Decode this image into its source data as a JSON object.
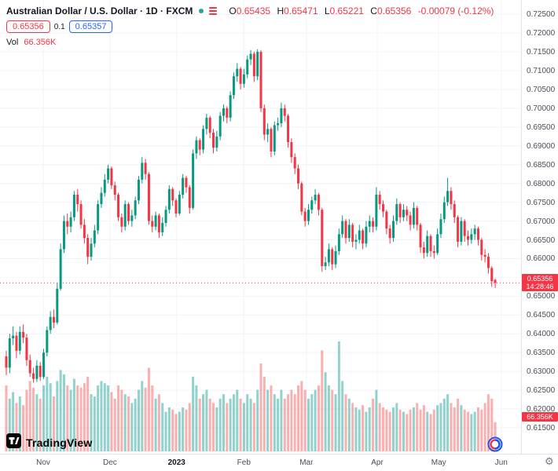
{
  "header": {
    "symbol_title": "Australian Dollar / U.S. Dollar · 1D · FXCM",
    "ohlc": {
      "o_label": "O",
      "o": "0.65435",
      "h_label": "H",
      "h": "0.65471",
      "l_label": "L",
      "l": "0.65221",
      "c_label": "C",
      "c": "0.65356",
      "change": "-0.00079 (-0.12%)"
    },
    "bid": "0.65356",
    "spread": "0.1",
    "ask": "0.65357",
    "vol_label": "Vol",
    "vol_value": "66.356K"
  },
  "price_tag": {
    "price": "0.65356",
    "countdown": "14:28:46"
  },
  "volume_tag": "66.356K",
  "watermark": {
    "logo_text": "TradingView"
  },
  "chart_data": {
    "type": "candlestick",
    "symbol": "AUD/USD",
    "title": "Australian Dollar / U.S. Dollar",
    "interval": "1D",
    "exchange": "FXCM",
    "last_price": 0.65356,
    "last_volume_k": 66.356,
    "price_range_top": 0.7288,
    "price_range_bottom": 0.6081,
    "colors": {
      "up": "#089981",
      "down": "#f23645",
      "vol_up": "rgba(38,166,154,0.5)",
      "vol_down": "rgba(239,83,80,0.45)",
      "price_line": "#f23645"
    },
    "y_ticks": [
      "0.72500",
      "0.72000",
      "0.71500",
      "0.71000",
      "0.70500",
      "0.70000",
      "0.69500",
      "0.69000",
      "0.68500",
      "0.68000",
      "0.67500",
      "0.67000",
      "0.66500",
      "0.66000",
      "0.65500",
      "0.65000",
      "0.64500",
      "0.64000",
      "0.63500",
      "0.63000",
      "0.62500",
      "0.62000",
      "0.61500"
    ],
    "x_ticks": [
      {
        "label": "Nov",
        "pos": 0.083
      },
      {
        "label": "Dec",
        "pos": 0.211
      },
      {
        "label": "2023",
        "pos": 0.339,
        "bold": true
      },
      {
        "label": "Feb",
        "pos": 0.468
      },
      {
        "label": "Mar",
        "pos": 0.588
      },
      {
        "label": "Apr",
        "pos": 0.724
      },
      {
        "label": "May",
        "pos": 0.842
      },
      {
        "label": "Jun",
        "pos": 0.962
      }
    ],
    "candles_format": [
      "open",
      "high",
      "low",
      "close",
      "volume_k"
    ],
    "candles": [
      [
        0.634,
        0.6355,
        0.629,
        0.631,
        150
      ],
      [
        0.631,
        0.64,
        0.6295,
        0.6388,
        120
      ],
      [
        0.6388,
        0.642,
        0.637,
        0.6395,
        135
      ],
      [
        0.6395,
        0.6405,
        0.6335,
        0.6355,
        110
      ],
      [
        0.6355,
        0.642,
        0.6345,
        0.6405,
        125
      ],
      [
        0.6405,
        0.6425,
        0.6375,
        0.639,
        105
      ],
      [
        0.639,
        0.64,
        0.6315,
        0.633,
        140
      ],
      [
        0.633,
        0.6345,
        0.6285,
        0.6295,
        160
      ],
      [
        0.6295,
        0.631,
        0.627,
        0.628,
        145
      ],
      [
        0.628,
        0.633,
        0.6272,
        0.6315,
        130
      ],
      [
        0.6315,
        0.6325,
        0.6275,
        0.6285,
        120
      ],
      [
        0.6285,
        0.636,
        0.628,
        0.635,
        150
      ],
      [
        0.635,
        0.642,
        0.634,
        0.641,
        170
      ],
      [
        0.641,
        0.646,
        0.64,
        0.6445,
        155
      ],
      [
        0.6445,
        0.6465,
        0.6415,
        0.643,
        125
      ],
      [
        0.643,
        0.6535,
        0.6425,
        0.652,
        160
      ],
      [
        0.652,
        0.664,
        0.6515,
        0.6625,
        185
      ],
      [
        0.6625,
        0.6715,
        0.6615,
        0.67,
        175
      ],
      [
        0.67,
        0.672,
        0.6665,
        0.6685,
        150
      ],
      [
        0.6685,
        0.6725,
        0.667,
        0.671,
        140
      ],
      [
        0.671,
        0.678,
        0.67,
        0.677,
        165
      ],
      [
        0.677,
        0.6785,
        0.6725,
        0.6745,
        150
      ],
      [
        0.6745,
        0.6755,
        0.668,
        0.669,
        145
      ],
      [
        0.669,
        0.6705,
        0.664,
        0.6655,
        155
      ],
      [
        0.6655,
        0.6665,
        0.6585,
        0.6605,
        170
      ],
      [
        0.6605,
        0.6655,
        0.6595,
        0.664,
        130
      ],
      [
        0.664,
        0.669,
        0.663,
        0.6675,
        125
      ],
      [
        0.6675,
        0.6755,
        0.6665,
        0.6745,
        150
      ],
      [
        0.6745,
        0.679,
        0.6735,
        0.6775,
        160
      ],
      [
        0.6775,
        0.6825,
        0.6765,
        0.681,
        155
      ],
      [
        0.681,
        0.685,
        0.68,
        0.684,
        150
      ],
      [
        0.684,
        0.6845,
        0.6785,
        0.6795,
        135
      ],
      [
        0.6795,
        0.6805,
        0.6755,
        0.677,
        120
      ],
      [
        0.677,
        0.6775,
        0.67,
        0.671,
        150
      ],
      [
        0.671,
        0.672,
        0.667,
        0.6685,
        140
      ],
      [
        0.6685,
        0.6755,
        0.6675,
        0.6745,
        130
      ],
      [
        0.6745,
        0.675,
        0.669,
        0.67,
        125
      ],
      [
        0.67,
        0.673,
        0.6685,
        0.6715,
        110
      ],
      [
        0.6715,
        0.6765,
        0.6705,
        0.6755,
        120
      ],
      [
        0.6755,
        0.682,
        0.6745,
        0.681,
        140
      ],
      [
        0.681,
        0.687,
        0.68,
        0.6855,
        160
      ],
      [
        0.6855,
        0.6865,
        0.681,
        0.6825,
        145
      ],
      [
        0.6825,
        0.683,
        0.669,
        0.67,
        190
      ],
      [
        0.67,
        0.6715,
        0.667,
        0.6685,
        150
      ],
      [
        0.6685,
        0.6725,
        0.6675,
        0.6715,
        120
      ],
      [
        0.6715,
        0.672,
        0.6655,
        0.667,
        130
      ],
      [
        0.667,
        0.671,
        0.666,
        0.6695,
        110
      ],
      [
        0.6695,
        0.674,
        0.6685,
        0.673,
        90
      ],
      [
        0.673,
        0.6795,
        0.672,
        0.6785,
        100
      ],
      [
        0.6785,
        0.679,
        0.674,
        0.6755,
        95
      ],
      [
        0.6755,
        0.676,
        0.671,
        0.672,
        85
      ],
      [
        0.672,
        0.678,
        0.6715,
        0.677,
        90
      ],
      [
        0.677,
        0.6825,
        0.676,
        0.6815,
        100
      ],
      [
        0.6815,
        0.682,
        0.6775,
        0.679,
        95
      ],
      [
        0.679,
        0.6795,
        0.672,
        0.6735,
        110
      ],
      [
        0.6735,
        0.689,
        0.673,
        0.688,
        170
      ],
      [
        0.688,
        0.6925,
        0.6865,
        0.6915,
        150
      ],
      [
        0.6915,
        0.692,
        0.6875,
        0.689,
        120
      ],
      [
        0.689,
        0.6955,
        0.688,
        0.6945,
        130
      ],
      [
        0.6945,
        0.6985,
        0.693,
        0.6975,
        140
      ],
      [
        0.6975,
        0.698,
        0.692,
        0.6935,
        120
      ],
      [
        0.6935,
        0.6945,
        0.688,
        0.6895,
        110
      ],
      [
        0.6895,
        0.694,
        0.6885,
        0.6925,
        100
      ],
      [
        0.6925,
        0.699,
        0.6915,
        0.698,
        120
      ],
      [
        0.698,
        0.701,
        0.6965,
        0.7,
        130
      ],
      [
        0.7,
        0.7005,
        0.696,
        0.6975,
        110
      ],
      [
        0.6975,
        0.7045,
        0.6965,
        0.7035,
        120
      ],
      [
        0.7035,
        0.7095,
        0.7025,
        0.7085,
        130
      ],
      [
        0.7085,
        0.712,
        0.707,
        0.7105,
        140
      ],
      [
        0.7105,
        0.711,
        0.705,
        0.7065,
        120
      ],
      [
        0.7065,
        0.7105,
        0.7055,
        0.709,
        110
      ],
      [
        0.709,
        0.714,
        0.708,
        0.713,
        130
      ],
      [
        0.713,
        0.7155,
        0.7115,
        0.7145,
        120
      ],
      [
        0.7145,
        0.715,
        0.707,
        0.7085,
        110
      ],
      [
        0.7085,
        0.7157,
        0.7075,
        0.715,
        140
      ],
      [
        0.715,
        0.7155,
        0.699,
        0.7,
        200
      ],
      [
        0.7,
        0.701,
        0.6915,
        0.693,
        170
      ],
      [
        0.693,
        0.696,
        0.691,
        0.6945,
        140
      ],
      [
        0.6945,
        0.695,
        0.687,
        0.6885,
        150
      ],
      [
        0.6885,
        0.6965,
        0.6875,
        0.6955,
        130
      ],
      [
        0.6955,
        0.6975,
        0.694,
        0.696,
        120
      ],
      [
        0.696,
        0.7015,
        0.695,
        0.7,
        140
      ],
      [
        0.7,
        0.701,
        0.6965,
        0.698,
        120
      ],
      [
        0.698,
        0.6985,
        0.6895,
        0.691,
        130
      ],
      [
        0.691,
        0.692,
        0.6855,
        0.687,
        140
      ],
      [
        0.687,
        0.688,
        0.6825,
        0.684,
        130
      ],
      [
        0.684,
        0.685,
        0.6785,
        0.68,
        150
      ],
      [
        0.68,
        0.6805,
        0.6715,
        0.6725,
        160
      ],
      [
        0.6725,
        0.6735,
        0.6685,
        0.67,
        140
      ],
      [
        0.67,
        0.6745,
        0.669,
        0.673,
        120
      ],
      [
        0.673,
        0.6765,
        0.672,
        0.6755,
        130
      ],
      [
        0.6755,
        0.6785,
        0.6745,
        0.677,
        140
      ],
      [
        0.677,
        0.6775,
        0.6715,
        0.673,
        150
      ],
      [
        0.673,
        0.6735,
        0.6565,
        0.658,
        230
      ],
      [
        0.658,
        0.6605,
        0.657,
        0.659,
        180
      ],
      [
        0.659,
        0.664,
        0.658,
        0.6625,
        150
      ],
      [
        0.6625,
        0.663,
        0.657,
        0.6585,
        140
      ],
      [
        0.6585,
        0.6635,
        0.6575,
        0.662,
        130
      ],
      [
        0.662,
        0.668,
        0.661,
        0.6665,
        250
      ],
      [
        0.6665,
        0.6715,
        0.6655,
        0.67,
        160
      ],
      [
        0.67,
        0.6705,
        0.664,
        0.6655,
        130
      ],
      [
        0.6655,
        0.6705,
        0.6645,
        0.669,
        120
      ],
      [
        0.669,
        0.6695,
        0.663,
        0.6645,
        110
      ],
      [
        0.6645,
        0.6665,
        0.6625,
        0.665,
        100
      ],
      [
        0.665,
        0.669,
        0.664,
        0.6675,
        95
      ],
      [
        0.6675,
        0.668,
        0.6625,
        0.664,
        105
      ],
      [
        0.664,
        0.67,
        0.663,
        0.6685,
        90
      ],
      [
        0.6685,
        0.6715,
        0.667,
        0.67,
        100
      ],
      [
        0.67,
        0.671,
        0.667,
        0.6685,
        120
      ],
      [
        0.6685,
        0.679,
        0.6675,
        0.677,
        140
      ],
      [
        0.677,
        0.678,
        0.673,
        0.6745,
        110
      ],
      [
        0.6745,
        0.6755,
        0.671,
        0.6725,
        100
      ],
      [
        0.6725,
        0.673,
        0.6665,
        0.668,
        95
      ],
      [
        0.668,
        0.669,
        0.664,
        0.6655,
        90
      ],
      [
        0.6655,
        0.6715,
        0.6645,
        0.67,
        100
      ],
      [
        0.67,
        0.676,
        0.669,
        0.6745,
        110
      ],
      [
        0.6745,
        0.675,
        0.6695,
        0.671,
        95
      ],
      [
        0.671,
        0.6745,
        0.67,
        0.673,
        90
      ],
      [
        0.673,
        0.674,
        0.67,
        0.6715,
        85
      ],
      [
        0.6715,
        0.6725,
        0.6675,
        0.669,
        95
      ],
      [
        0.669,
        0.675,
        0.668,
        0.6735,
        100
      ],
      [
        0.6735,
        0.674,
        0.6675,
        0.669,
        110
      ],
      [
        0.669,
        0.6695,
        0.6615,
        0.663,
        95
      ],
      [
        0.663,
        0.6645,
        0.66,
        0.6615,
        105
      ],
      [
        0.6615,
        0.6675,
        0.6605,
        0.666,
        90
      ],
      [
        0.666,
        0.6665,
        0.6605,
        0.662,
        85
      ],
      [
        0.662,
        0.6635,
        0.66,
        0.6615,
        95
      ],
      [
        0.6615,
        0.668,
        0.661,
        0.6665,
        105
      ],
      [
        0.6665,
        0.672,
        0.6655,
        0.6705,
        110
      ],
      [
        0.6705,
        0.6765,
        0.6695,
        0.675,
        120
      ],
      [
        0.675,
        0.6815,
        0.674,
        0.678,
        130
      ],
      [
        0.678,
        0.679,
        0.673,
        0.6745,
        110
      ],
      [
        0.6745,
        0.6755,
        0.6695,
        0.671,
        100
      ],
      [
        0.671,
        0.6715,
        0.663,
        0.6645,
        120
      ],
      [
        0.6645,
        0.671,
        0.6635,
        0.67,
        105
      ],
      [
        0.67,
        0.6705,
        0.6645,
        0.666,
        95
      ],
      [
        0.666,
        0.6675,
        0.6635,
        0.665,
        90
      ],
      [
        0.665,
        0.668,
        0.664,
        0.6665,
        85
      ],
      [
        0.6665,
        0.669,
        0.665,
        0.668,
        90
      ],
      [
        0.668,
        0.6685,
        0.6635,
        0.665,
        100
      ],
      [
        0.665,
        0.6655,
        0.6595,
        0.661,
        95
      ],
      [
        0.661,
        0.6625,
        0.659,
        0.6605,
        110
      ],
      [
        0.6605,
        0.6615,
        0.656,
        0.6575,
        130
      ],
      [
        0.6575,
        0.658,
        0.6525,
        0.654,
        120
      ],
      [
        0.65435,
        0.65471,
        0.65221,
        0.65356,
        66.356
      ]
    ]
  }
}
